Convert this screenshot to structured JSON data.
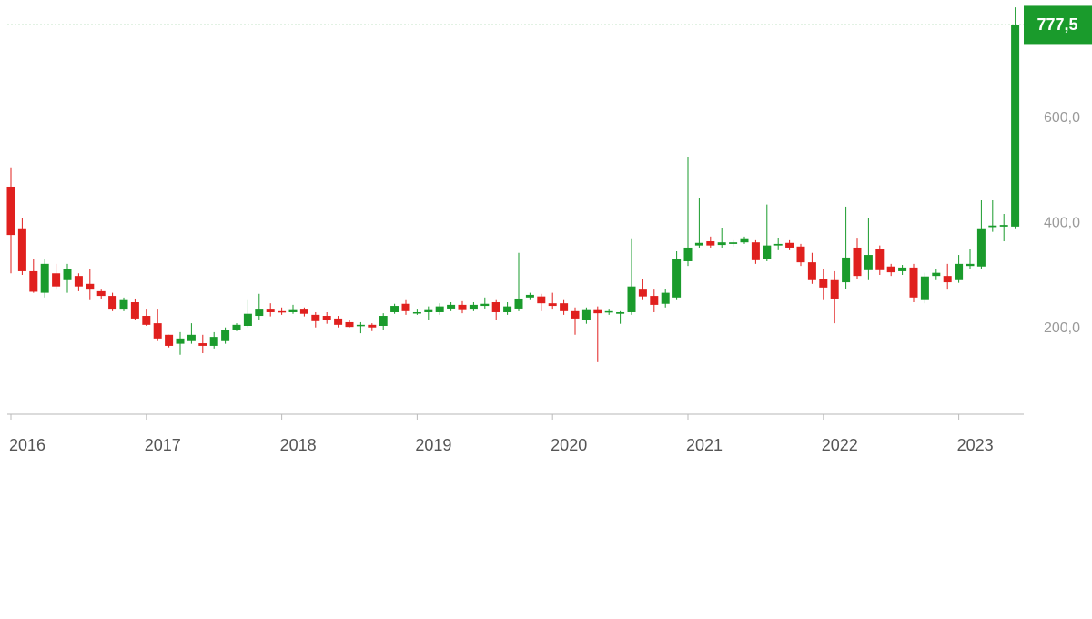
{
  "chart_data": {
    "type": "candlestick",
    "x": [
      "2016-01",
      "2016-02",
      "2016-03",
      "2016-04",
      "2016-05",
      "2016-06",
      "2016-07",
      "2016-08",
      "2016-09",
      "2016-10",
      "2016-11",
      "2016-12",
      "2017-01",
      "2017-02",
      "2017-03",
      "2017-04",
      "2017-05",
      "2017-06",
      "2017-07",
      "2017-08",
      "2017-09",
      "2017-10",
      "2017-11",
      "2017-12",
      "2018-01",
      "2018-02",
      "2018-03",
      "2018-04",
      "2018-05",
      "2018-06",
      "2018-07",
      "2018-08",
      "2018-09",
      "2018-10",
      "2018-11",
      "2018-12",
      "2019-01",
      "2019-02",
      "2019-03",
      "2019-04",
      "2019-05",
      "2019-06",
      "2019-07",
      "2019-08",
      "2019-09",
      "2019-10",
      "2019-11",
      "2019-12",
      "2020-01",
      "2020-02",
      "2020-03",
      "2020-04",
      "2020-05",
      "2020-06",
      "2020-07",
      "2020-08",
      "2020-09",
      "2020-10",
      "2020-11",
      "2020-12",
      "2021-01",
      "2021-02",
      "2021-03",
      "2021-04",
      "2021-05",
      "2021-06",
      "2021-07",
      "2021-08",
      "2021-09",
      "2021-10",
      "2021-11",
      "2021-12",
      "2022-01",
      "2022-02",
      "2022-03",
      "2022-04",
      "2022-05",
      "2022-06",
      "2022-07",
      "2022-08",
      "2022-09",
      "2022-10",
      "2022-11",
      "2022-12",
      "2023-01",
      "2023-02",
      "2023-03",
      "2023-04",
      "2023-05",
      "2023-06"
    ],
    "open": [
      470,
      389,
      309,
      268,
      305,
      292,
      300,
      285,
      271,
      262,
      236,
      250,
      224,
      210,
      188,
      171,
      176,
      172,
      167,
      176,
      198,
      205,
      224,
      236,
      233,
      231,
      236,
      226,
      224,
      219,
      212,
      205,
      207,
      205,
      231,
      247,
      229,
      231,
      231,
      238,
      245,
      236,
      243,
      250,
      231,
      238,
      259,
      261,
      248,
      248,
      233,
      217,
      235,
      231,
      228,
      231,
      274,
      262,
      247,
      259,
      328,
      358,
      366,
      359,
      361,
      364,
      364,
      333,
      358,
      363,
      356,
      326,
      294,
      292,
      288,
      354,
      311,
      352,
      318,
      309,
      316,
      254,
      300,
      300,
      292,
      319,
      318,
      393,
      394,
      394
    ],
    "high": [
      505,
      410,
      332,
      332,
      323,
      323,
      305,
      313,
      274,
      268,
      259,
      257,
      236,
      236,
      188,
      193,
      210,
      188,
      193,
      202,
      210,
      254,
      266,
      248,
      240,
      245,
      240,
      231,
      231,
      224,
      216,
      212,
      210,
      229,
      247,
      254,
      236,
      242,
      248,
      250,
      252,
      250,
      259,
      254,
      250,
      344,
      268,
      266,
      268,
      254,
      240,
      240,
      242,
      236,
      233,
      370,
      294,
      274,
      276,
      347,
      526,
      448,
      375,
      392,
      368,
      375,
      368,
      436,
      373,
      368,
      361,
      344,
      314,
      309,
      432,
      371,
      410,
      358,
      323,
      321,
      323,
      306,
      314,
      323,
      340,
      351,
      444,
      444,
      418,
      811
    ],
    "low": [
      305,
      302,
      268,
      259,
      274,
      268,
      271,
      254,
      257,
      233,
      233,
      216,
      205,
      176,
      164,
      150,
      171,
      153,
      162,
      171,
      195,
      202,
      216,
      223,
      226,
      228,
      223,
      202,
      209,
      202,
      202,
      191,
      195,
      198,
      228,
      226,
      226,
      216,
      226,
      233,
      229,
      233,
      238,
      216,
      226,
      233,
      254,
      233,
      236,
      226,
      188,
      209,
      136,
      226,
      209,
      226,
      254,
      231,
      240,
      254,
      319,
      354,
      354,
      354,
      356,
      361,
      323,
      328,
      349,
      349,
      319,
      285,
      254,
      210,
      276,
      294,
      292,
      302,
      300,
      302,
      250,
      248,
      292,
      274,
      287,
      314,
      313,
      384,
      366,
      389
    ],
    "close": [
      378,
      309,
      270,
      323,
      280,
      314,
      280,
      274,
      262,
      236,
      254,
      219,
      207,
      181,
      167,
      181,
      188,
      167,
      184,
      198,
      207,
      228,
      236,
      231,
      231,
      235,
      228,
      214,
      216,
      207,
      203,
      207,
      202,
      224,
      243,
      233,
      231,
      235,
      242,
      245,
      235,
      245,
      247,
      231,
      242,
      257,
      264,
      248,
      243,
      233,
      219,
      235,
      229,
      233,
      231,
      280,
      261,
      245,
      268,
      333,
      354,
      363,
      358,
      364,
      364,
      370,
      330,
      358,
      361,
      354,
      326,
      292,
      278,
      257,
      335,
      300,
      340,
      311,
      307,
      316,
      259,
      299,
      306,
      288,
      323,
      323,
      389,
      396,
      397,
      777.5
    ],
    "up_color": "#1a9b2c",
    "down_color": "#e0201e",
    "last_price": {
      "value": 777.5,
      "label": "777,5"
    },
    "ylim": [
      37,
      825
    ],
    "yticks": [
      {
        "value": 200,
        "label": "200,0"
      },
      {
        "value": 400,
        "label": "400,0"
      },
      {
        "value": 600,
        "label": "600,0"
      }
    ],
    "xticks": [
      {
        "value": "2016-01",
        "label": "2016"
      },
      {
        "value": "2017-01",
        "label": "2017"
      },
      {
        "value": "2018-01",
        "label": "2018"
      },
      {
        "value": "2019-01",
        "label": "2019"
      },
      {
        "value": "2020-01",
        "label": "2020"
      },
      {
        "value": "2021-01",
        "label": "2021"
      },
      {
        "value": "2022-01",
        "label": "2022"
      },
      {
        "value": "2023-01",
        "label": "2023"
      }
    ],
    "grid": false
  }
}
